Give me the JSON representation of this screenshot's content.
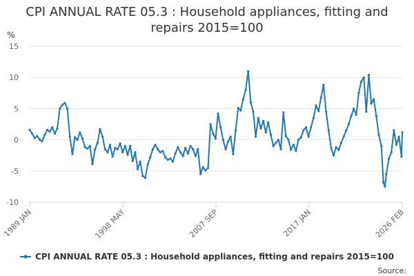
{
  "chart_data": {
    "type": "line",
    "title_line1": "CPI ANNUAL RATE 05.3 : Household appliances, fitting and",
    "title_line2": "repairs 2015=100",
    "ylabel": "%",
    "ylim": [
      -10,
      15
    ],
    "yticks": [
      "15",
      "10",
      "5",
      "0",
      "-5",
      "-10"
    ],
    "xlim": [
      1989.0,
      2026.083
    ],
    "xtick_labels": [
      "1989 JAN",
      "1998 MAY",
      "2007 SEP",
      "2017 JAN",
      "2026 FEB"
    ],
    "grid": true,
    "legend_position": "bottom",
    "source_label": "Source:",
    "line_color": "#1f77b4",
    "series": [
      {
        "name": "CPI ANNUAL RATE 05.3 : Household appliances, fitting and repairs 2015=100",
        "points": [
          [
            1989.0,
            1.6
          ],
          [
            1989.25,
            1.0
          ],
          [
            1989.5,
            0.3
          ],
          [
            1989.75,
            0.6
          ],
          [
            1990.0,
            0.0
          ],
          [
            1990.25,
            -0.2
          ],
          [
            1990.5,
            0.8
          ],
          [
            1990.75,
            1.6
          ],
          [
            1991.0,
            1.3
          ],
          [
            1991.25,
            2.0
          ],
          [
            1991.5,
            1.0
          ],
          [
            1991.75,
            1.8
          ],
          [
            1992.0,
            5.0
          ],
          [
            1992.25,
            5.6
          ],
          [
            1992.5,
            5.9
          ],
          [
            1992.75,
            5.0
          ],
          [
            1993.0,
            0.5
          ],
          [
            1993.25,
            -2.3
          ],
          [
            1993.5,
            0.4
          ],
          [
            1993.75,
            0.0
          ],
          [
            1994.0,
            1.2
          ],
          [
            1994.25,
            0.2
          ],
          [
            1994.5,
            -1.2
          ],
          [
            1994.75,
            -1.4
          ],
          [
            1995.0,
            -1.0
          ],
          [
            1995.25,
            -3.9
          ],
          [
            1995.5,
            -1.5
          ],
          [
            1995.75,
            -0.5
          ],
          [
            1996.0,
            1.7
          ],
          [
            1996.25,
            0.5
          ],
          [
            1996.5,
            -1.5
          ],
          [
            1996.75,
            -2.0
          ],
          [
            1997.0,
            -0.8
          ],
          [
            1997.25,
            -2.7
          ],
          [
            1997.5,
            -1.3
          ],
          [
            1997.75,
            -1.5
          ],
          [
            1998.0,
            -0.6
          ],
          [
            1998.25,
            -2.0
          ],
          [
            1998.5,
            -1.0
          ],
          [
            1998.75,
            -2.4
          ],
          [
            1999.0,
            -1.0
          ],
          [
            1999.25,
            -3.4
          ],
          [
            1999.5,
            -2.0
          ],
          [
            1999.75,
            -4.7
          ],
          [
            2000.0,
            -3.5
          ],
          [
            2000.25,
            -5.8
          ],
          [
            2000.5,
            -6.1
          ],
          [
            2000.75,
            -4.0
          ],
          [
            2001.0,
            -2.8
          ],
          [
            2001.25,
            -1.5
          ],
          [
            2001.5,
            -0.8
          ],
          [
            2001.75,
            -1.5
          ],
          [
            2002.0,
            -2.0
          ],
          [
            2002.25,
            -1.8
          ],
          [
            2002.5,
            -2.8
          ],
          [
            2002.75,
            -3.2
          ],
          [
            2003.0,
            -3.0
          ],
          [
            2003.25,
            -3.5
          ],
          [
            2003.5,
            -2.2
          ],
          [
            2003.75,
            -1.2
          ],
          [
            2004.0,
            -2.0
          ],
          [
            2004.25,
            -2.6
          ],
          [
            2004.5,
            -1.3
          ],
          [
            2004.75,
            -2.2
          ],
          [
            2005.0,
            -1.0
          ],
          [
            2005.25,
            -1.5
          ],
          [
            2005.5,
            -2.6
          ],
          [
            2005.75,
            -1.5
          ],
          [
            2006.0,
            -5.5
          ],
          [
            2006.25,
            -4.4
          ],
          [
            2006.5,
            -4.9
          ],
          [
            2006.75,
            -4.5
          ],
          [
            2007.0,
            2.5
          ],
          [
            2007.25,
            1.0
          ],
          [
            2007.5,
            0.2
          ],
          [
            2007.75,
            4.2
          ],
          [
            2008.0,
            2.0
          ],
          [
            2008.25,
            0.0
          ],
          [
            2008.5,
            -1.5
          ],
          [
            2008.75,
            -0.3
          ],
          [
            2009.0,
            0.5
          ],
          [
            2009.25,
            -2.3
          ],
          [
            2009.5,
            1.5
          ],
          [
            2009.75,
            5.1
          ],
          [
            2010.0,
            4.7
          ],
          [
            2010.25,
            6.5
          ],
          [
            2010.5,
            8.0
          ],
          [
            2010.75,
            11.0
          ],
          [
            2011.0,
            6.0
          ],
          [
            2011.25,
            4.5
          ],
          [
            2011.5,
            0.5
          ],
          [
            2011.75,
            3.5
          ],
          [
            2012.0,
            1.8
          ],
          [
            2012.25,
            3.0
          ],
          [
            2012.5,
            1.2
          ],
          [
            2012.75,
            2.8
          ],
          [
            2013.0,
            0.8
          ],
          [
            2013.25,
            -1.0
          ],
          [
            2013.5,
            -0.5
          ],
          [
            2013.75,
            0.0
          ],
          [
            2014.0,
            -1.5
          ],
          [
            2014.25,
            4.4
          ],
          [
            2014.5,
            0.6
          ],
          [
            2014.75,
            0.0
          ],
          [
            2015.0,
            -1.6
          ],
          [
            2015.25,
            -0.8
          ],
          [
            2015.5,
            -1.8
          ],
          [
            2015.75,
            0.0
          ],
          [
            2016.0,
            0.4
          ],
          [
            2016.25,
            1.5
          ],
          [
            2016.5,
            2.0
          ],
          [
            2016.75,
            0.5
          ],
          [
            2017.0,
            2.0
          ],
          [
            2017.25,
            3.5
          ],
          [
            2017.5,
            5.5
          ],
          [
            2017.75,
            4.6
          ],
          [
            2018.0,
            6.8
          ],
          [
            2018.25,
            8.8
          ],
          [
            2018.5,
            4.5
          ],
          [
            2018.75,
            1.5
          ],
          [
            2019.0,
            -1.3
          ],
          [
            2019.25,
            -2.5
          ],
          [
            2019.5,
            -1.2
          ],
          [
            2019.75,
            -1.6
          ],
          [
            2020.0,
            -0.5
          ],
          [
            2020.25,
            0.5
          ],
          [
            2020.5,
            1.5
          ],
          [
            2020.75,
            2.5
          ],
          [
            2021.0,
            3.8
          ],
          [
            2021.25,
            5.0
          ],
          [
            2021.5,
            4.0
          ],
          [
            2021.75,
            7.5
          ],
          [
            2022.0,
            9.3
          ],
          [
            2022.25,
            10.0
          ],
          [
            2022.5,
            4.5
          ],
          [
            2022.75,
            10.4
          ],
          [
            2023.0,
            5.8
          ],
          [
            2023.25,
            6.5
          ],
          [
            2023.5,
            3.8
          ],
          [
            2023.75,
            0.8
          ],
          [
            2024.0,
            -1.0
          ],
          [
            2024.2,
            -6.8
          ],
          [
            2024.35,
            -7.5
          ],
          [
            2024.5,
            -5.5
          ],
          [
            2024.75,
            -3.0
          ],
          [
            2025.0,
            -2.0
          ],
          [
            2025.25,
            1.5
          ],
          [
            2025.5,
            -0.8
          ],
          [
            2025.75,
            0.5
          ],
          [
            2026.0,
            -2.7
          ],
          [
            2026.083,
            1.2
          ]
        ]
      }
    ]
  }
}
